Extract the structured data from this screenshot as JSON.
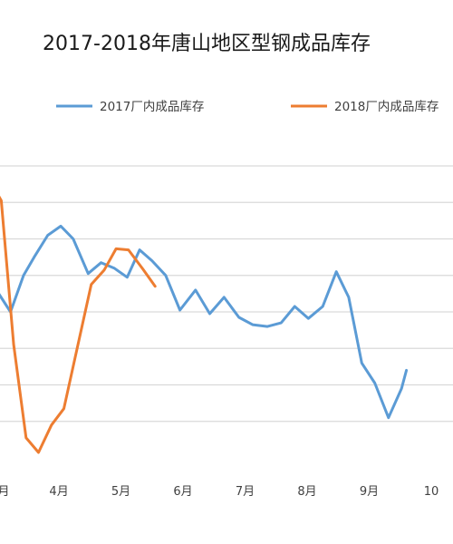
{
  "chart_data": {
    "type": "line",
    "title": "2017-2018年唐山地区型钢成品库存",
    "legend_position": "top",
    "grid": true,
    "x_ticks": [
      {
        "label": "4月",
        "x": 4
      },
      {
        "label": "5月",
        "x": 5
      },
      {
        "label": "6月",
        "x": 6
      },
      {
        "label": "7月",
        "x": 7
      },
      {
        "label": "8月",
        "x": 8
      },
      {
        "label": "9月",
        "x": 9
      },
      {
        "label": "10",
        "x": 10
      }
    ],
    "xlim": [
      3.05,
      10.35
    ],
    "ylim": [
      0,
      8
    ],
    "y_gridlines": [
      1,
      2,
      3,
      4,
      5,
      6,
      7,
      8
    ],
    "series": [
      {
        "name": "2017厂内成品库存",
        "color": "#5b9bd5",
        "points": [
          [
            2.95,
            5.2
          ],
          [
            3.03,
            4.5
          ],
          [
            3.22,
            4.0
          ],
          [
            3.43,
            5.0
          ],
          [
            3.6,
            5.5
          ],
          [
            3.82,
            6.1
          ],
          [
            4.03,
            6.35
          ],
          [
            4.23,
            6.0
          ],
          [
            4.47,
            5.05
          ],
          [
            4.68,
            5.35
          ],
          [
            4.89,
            5.2
          ],
          [
            5.1,
            4.95
          ],
          [
            5.3,
            5.7
          ],
          [
            5.5,
            5.4
          ],
          [
            5.72,
            5.0
          ],
          [
            5.95,
            4.05
          ],
          [
            6.2,
            4.6
          ],
          [
            6.43,
            3.95
          ],
          [
            6.66,
            4.4
          ],
          [
            6.9,
            3.85
          ],
          [
            7.12,
            3.65
          ],
          [
            7.36,
            3.6
          ],
          [
            7.58,
            3.7
          ],
          [
            7.8,
            4.15
          ],
          [
            8.02,
            3.82
          ],
          [
            8.25,
            4.15
          ],
          [
            8.47,
            5.1
          ],
          [
            8.67,
            4.4
          ],
          [
            8.88,
            2.6
          ],
          [
            9.09,
            2.05
          ],
          [
            9.31,
            1.1
          ],
          [
            9.52,
            1.9
          ],
          [
            9.6,
            2.4
          ]
        ]
      },
      {
        "name": "2018厂内成品库存",
        "color": "#ed7d31",
        "points": [
          [
            2.95,
            7.4
          ],
          [
            3.07,
            7.05
          ],
          [
            3.27,
            3.1
          ],
          [
            3.47,
            0.55
          ],
          [
            3.67,
            0.15
          ],
          [
            3.88,
            0.9
          ],
          [
            4.08,
            1.35
          ],
          [
            4.3,
            3.05
          ],
          [
            4.52,
            4.75
          ],
          [
            4.73,
            5.15
          ],
          [
            4.92,
            5.73
          ],
          [
            5.12,
            5.7
          ],
          [
            5.35,
            5.18
          ],
          [
            5.55,
            4.7
          ]
        ]
      }
    ]
  }
}
